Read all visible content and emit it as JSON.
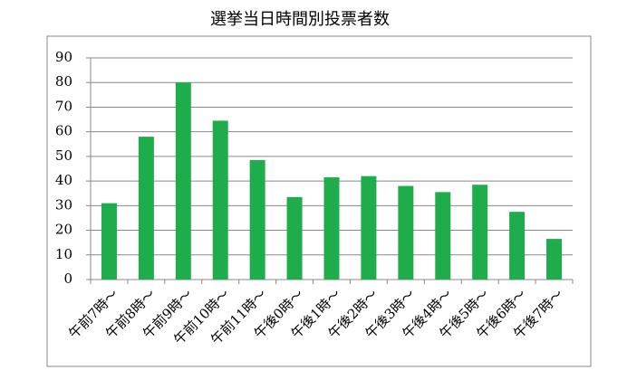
{
  "chart_data": {
    "type": "bar",
    "title": "選挙当日時間別投票者数",
    "categories": [
      "午前7時～",
      "午前8時～",
      "午前9時～",
      "午前10時～",
      "午前11時～",
      "午後0時～",
      "午後1時～",
      "午後2時～",
      "午後3時～",
      "午後4時～",
      "午後5時～",
      "午後6時～",
      "午後7時～"
    ],
    "values": [
      31,
      58,
      80,
      64.5,
      48.5,
      33.5,
      41.5,
      42,
      38,
      35.5,
      38.5,
      27.5,
      16.5
    ],
    "color": "#1fad4c",
    "ylim": [
      0,
      90
    ],
    "yticks": [
      0,
      10,
      20,
      30,
      40,
      50,
      60,
      70,
      80,
      90
    ],
    "grid": true
  }
}
